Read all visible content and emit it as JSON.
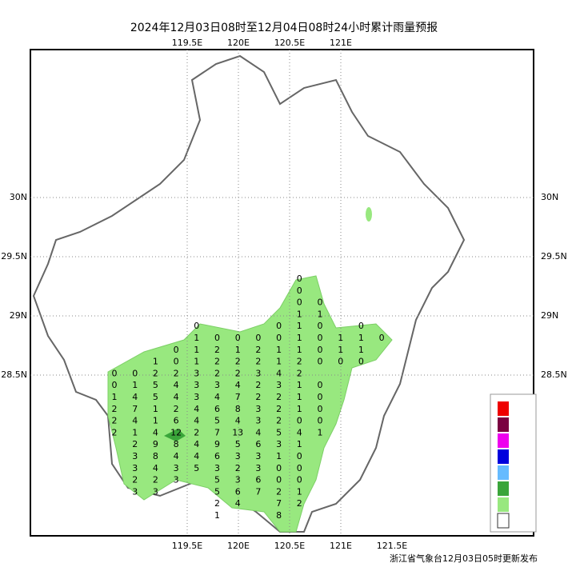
{
  "header": {
    "title": "2024年12月03日08时至12月04日08时24小时累计雨量预报"
  },
  "footer": {
    "text": "浙江省气象台12月03日05时更新发布"
  },
  "map": {
    "lon_ticks": [
      {
        "value": 119.5,
        "label": "119.5E"
      },
      {
        "value": 120,
        "label": "120E"
      },
      {
        "value": 120.5,
        "label": "120.5E"
      },
      {
        "value": 121,
        "label": "121E"
      }
    ],
    "bottom_lon_ticks": [
      {
        "value": 119.5,
        "label": "119.5E"
      },
      {
        "value": 120,
        "label": "120E"
      },
      {
        "value": 120.5,
        "label": "120.5E"
      },
      {
        "value": 121,
        "label": "121E"
      },
      {
        "value": 121.5,
        "label": "121.5E"
      }
    ],
    "lat_ticks": [
      {
        "value": 30,
        "label": "30N"
      },
      {
        "value": 29.5,
        "label": "29.5N"
      },
      {
        "value": 29,
        "label": "29N"
      },
      {
        "value": 28.5,
        "label": "28.5N"
      }
    ],
    "station_values": [
      [
        null,
        null,
        null,
        null,
        null,
        null,
        null,
        null,
        null,
        0,
        null,
        null,
        null,
        null
      ],
      [
        null,
        null,
        null,
        null,
        null,
        null,
        null,
        null,
        null,
        0,
        null,
        null,
        null,
        null
      ],
      [
        null,
        null,
        null,
        null,
        null,
        null,
        null,
        null,
        null,
        0,
        0,
        null,
        null,
        null
      ],
      [
        null,
        null,
        null,
        null,
        null,
        null,
        null,
        null,
        null,
        1,
        1,
        null,
        null,
        null
      ],
      [
        null,
        null,
        null,
        null,
        0,
        null,
        null,
        null,
        0,
        1,
        0,
        null,
        0,
        null
      ],
      [
        null,
        null,
        null,
        null,
        1,
        0,
        0,
        0,
        0,
        1,
        0,
        1,
        1,
        0
      ],
      [
        null,
        null,
        null,
        0,
        1,
        2,
        1,
        2,
        1,
        1,
        0,
        1,
        1,
        null
      ],
      [
        null,
        null,
        1,
        0,
        1,
        2,
        2,
        2,
        1,
        2,
        0,
        0,
        0,
        null
      ],
      [
        0,
        0,
        2,
        2,
        3,
        2,
        2,
        3,
        4,
        2,
        null,
        null,
        null,
        null
      ],
      [
        0,
        1,
        5,
        4,
        3,
        3,
        4,
        2,
        3,
        1,
        0,
        null,
        null,
        null
      ],
      [
        1,
        4,
        5,
        4,
        3,
        4,
        7,
        2,
        2,
        1,
        0,
        null,
        null,
        null
      ],
      [
        2,
        7,
        1,
        2,
        4,
        6,
        8,
        3,
        2,
        1,
        0,
        null,
        null,
        null
      ],
      [
        2,
        4,
        1,
        6,
        4,
        5,
        4,
        3,
        2,
        0,
        0,
        null,
        null,
        null
      ],
      [
        2,
        1,
        4,
        12,
        2,
        7,
        13,
        4,
        5,
        4,
        1,
        null,
        null,
        null
      ],
      [
        null,
        2,
        9,
        8,
        4,
        9,
        5,
        6,
        3,
        1,
        null,
        null,
        null,
        null
      ],
      [
        null,
        3,
        8,
        4,
        4,
        6,
        3,
        3,
        1,
        0,
        null,
        null,
        null,
        null
      ],
      [
        null,
        3,
        4,
        3,
        5,
        3,
        2,
        3,
        0,
        0,
        null,
        null,
        null,
        null
      ],
      [
        null,
        2,
        2,
        3,
        null,
        5,
        3,
        6,
        0,
        0,
        null,
        null,
        null,
        null
      ],
      [
        null,
        3,
        3,
        null,
        null,
        5,
        6,
        7,
        2,
        1,
        null,
        null,
        null,
        null
      ],
      [
        null,
        null,
        null,
        null,
        null,
        2,
        4,
        null,
        7,
        2,
        null,
        null,
        null,
        null
      ],
      [
        null,
        null,
        null,
        null,
        null,
        1,
        null,
        null,
        8,
        null,
        null,
        null,
        null,
        null
      ]
    ]
  }
}
